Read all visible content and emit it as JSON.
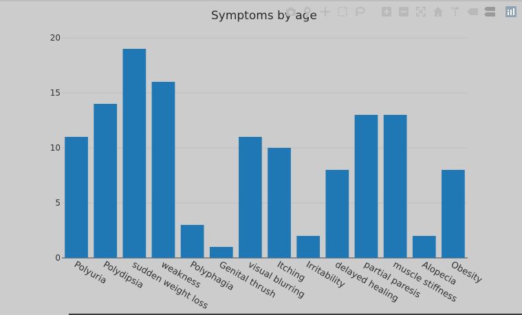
{
  "chart_data": {
    "type": "bar",
    "title": "Symptoms by age",
    "xlabel": "",
    "ylabel": "",
    "categories": [
      "Polyuria",
      "Polydipsia",
      "sudden weight loss",
      "weakness",
      "Polyphagia",
      "Genital thrush",
      "visual blurring",
      "Itching",
      "Irritability",
      "delayed healing",
      "partial paresis",
      "muscle stiffness",
      "Alopecia",
      "Obesity"
    ],
    "values": [
      11,
      14,
      19,
      16,
      3,
      1,
      11,
      10,
      2,
      8,
      13,
      13,
      2,
      8
    ],
    "ylim": [
      0,
      20
    ],
    "yticks": [
      "0",
      "5",
      "10",
      "15",
      "20"
    ],
    "grid": true,
    "bar_color": "#1f77b4",
    "legend": "none"
  },
  "modebar": {
    "buttons": [
      "camera-icon",
      "zoom-icon",
      "pan-icon",
      "box-select-icon",
      "lasso-icon",
      "zoom-in-icon",
      "zoom-out-icon",
      "autoscale-icon",
      "reset-axes-icon",
      "spike-lines-icon",
      "hover-closest-icon",
      "hover-compare-icon",
      "plotly-logo-icon"
    ]
  }
}
